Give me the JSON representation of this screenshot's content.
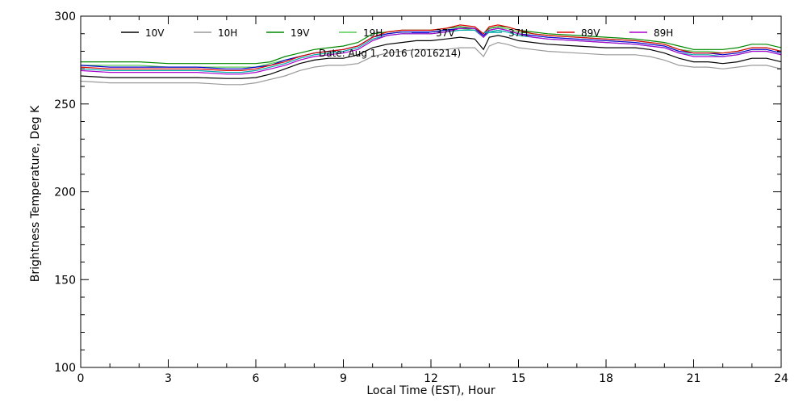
{
  "chart_data": {
    "type": "line",
    "title": "",
    "annotation": "Date: Aug  1, 2016 (2016214)",
    "xlabel": "Local Time (EST), Hour",
    "ylabel": "Brightness Temperature, Deg K",
    "xlim": [
      0,
      24
    ],
    "ylim": [
      100,
      300
    ],
    "x_ticks": [
      0,
      3,
      6,
      9,
      12,
      15,
      18,
      21,
      24
    ],
    "y_ticks": [
      100,
      150,
      200,
      250,
      300
    ],
    "grid": false,
    "legend_position": "top",
    "x": [
      0,
      1,
      2,
      3,
      4,
      5,
      5.5,
      6,
      6.5,
      7,
      7.5,
      8,
      8.5,
      9,
      9.5,
      10,
      10.5,
      11,
      11.5,
      12,
      12.5,
      13,
      13.5,
      13.8,
      14,
      14.3,
      14.6,
      15,
      15.5,
      16,
      17,
      18,
      19,
      19.5,
      20,
      20.5,
      21,
      21.5,
      22,
      22.5,
      23,
      23.5,
      24
    ],
    "series": [
      {
        "name": "10V",
        "color": "#000000",
        "values": [
          266,
          265,
          265,
          265,
          265,
          264.5,
          264.5,
          265,
          267,
          270,
          273,
          275,
          276,
          276,
          278,
          282,
          284,
          285,
          286,
          286,
          287,
          288,
          287,
          281,
          288,
          289,
          288,
          286,
          285,
          284,
          283,
          282,
          282,
          281,
          279,
          276,
          274,
          274,
          273,
          274,
          276,
          276,
          274
        ]
      },
      {
        "name": "10H",
        "color": "#999999",
        "values": [
          263,
          262,
          262,
          262,
          262,
          261,
          261,
          262,
          264,
          266,
          269,
          271,
          272,
          272,
          273,
          277,
          279,
          280,
          281,
          281,
          281,
          282,
          282,
          277,
          283,
          285,
          284,
          282,
          281,
          280,
          279,
          278,
          278,
          277,
          275,
          272,
          271,
          271,
          270,
          271,
          272,
          272,
          270
        ]
      },
      {
        "name": "19V",
        "color": "#008800",
        "values": [
          274,
          274,
          274,
          273,
          273,
          273,
          273,
          273,
          274,
          277,
          279,
          281,
          282,
          283,
          285,
          290,
          291,
          292,
          292,
          292,
          293,
          294,
          293,
          290,
          293,
          294,
          294,
          292,
          291,
          290,
          289,
          288,
          287,
          286,
          285,
          283,
          281,
          281,
          281,
          282,
          284,
          284,
          282
        ]
      },
      {
        "name": "19H",
        "color": "#55cc55",
        "values": [
          272,
          272,
          272,
          271,
          271,
          271,
          271,
          271,
          273,
          275,
          277,
          279,
          280,
          281,
          283,
          288,
          290,
          291,
          291,
          291,
          292,
          293,
          292,
          288,
          292,
          293,
          293,
          291,
          290,
          289,
          288,
          287,
          286,
          285,
          284,
          281,
          280,
          280,
          279,
          280,
          282,
          282,
          280
        ]
      },
      {
        "name": "37V",
        "color": "#0000cc",
        "values": [
          272,
          271,
          271,
          271,
          271,
          270,
          270,
          271,
          272,
          275,
          277,
          279,
          280,
          281,
          283,
          288,
          290,
          291,
          291,
          291,
          292,
          293,
          293,
          289,
          292,
          293,
          292,
          290,
          289,
          288,
          287,
          286,
          285,
          284,
          283,
          280,
          279,
          279,
          278,
          279,
          281,
          281,
          279
        ]
      },
      {
        "name": "37H",
        "color": "#00aaaa",
        "values": [
          270,
          269,
          269,
          269,
          269,
          268,
          268,
          269,
          271,
          273,
          276,
          278,
          279,
          280,
          282,
          287,
          289,
          290,
          290,
          290,
          291,
          292,
          292,
          288,
          291,
          292,
          291,
          289,
          288,
          287,
          286,
          285,
          284,
          283,
          282,
          279,
          278,
          278,
          277,
          278,
          280,
          280,
          278
        ]
      },
      {
        "name": "89V",
        "color": "#dd0000",
        "values": [
          271,
          270,
          270,
          270,
          270,
          269,
          269,
          270,
          272,
          274,
          277,
          279,
          280,
          281,
          283,
          288,
          291,
          292,
          292,
          292,
          293,
          295,
          294,
          290,
          294,
          295,
          294,
          292,
          290,
          289,
          288,
          287,
          286,
          285,
          284,
          281,
          279,
          279,
          279,
          280,
          282,
          282,
          280
        ]
      },
      {
        "name": "89H",
        "color": "#aa00cc",
        "values": [
          269,
          268,
          268,
          268,
          268,
          267,
          267,
          268,
          270,
          272,
          275,
          277,
          278,
          279,
          281,
          286,
          289,
          290,
          290,
          290,
          291,
          293,
          293,
          288,
          292,
          293,
          292,
          290,
          288,
          287,
          286,
          285,
          284,
          283,
          282,
          279,
          277,
          277,
          277,
          278,
          280,
          280,
          278
        ]
      }
    ]
  }
}
